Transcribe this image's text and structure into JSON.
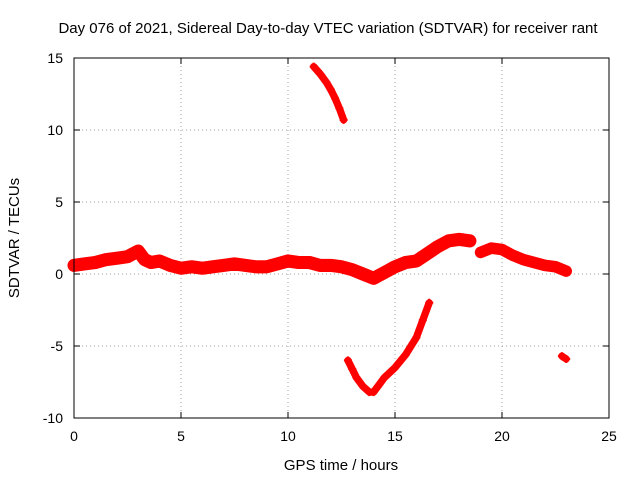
{
  "chart_data": {
    "type": "scatter",
    "title": "Day 076 of 2021, Sidereal Day-to-day VTEC variation (SDTVAR) for receiver rant",
    "xlabel": "GPS time / hours",
    "ylabel": "SDTVAR / TECUs",
    "xlim": [
      0,
      25
    ],
    "ylim": [
      -10,
      15
    ],
    "xticks": [
      0,
      5,
      10,
      15,
      20,
      25
    ],
    "yticks": [
      -10,
      -5,
      0,
      5,
      10,
      15
    ],
    "xtick_labels": [
      "0",
      "5",
      "10",
      "15",
      "20",
      "25"
    ],
    "ytick_labels": [
      "-10",
      "-5",
      "0",
      "5",
      "10",
      "15"
    ],
    "grid": true,
    "marker_color": "#ff0000",
    "series": [
      {
        "name": "main-band",
        "spread": 0.7,
        "x": [
          0.0,
          0.5,
          1.0,
          1.5,
          2.0,
          2.5,
          3.0,
          3.3,
          3.6,
          4.0,
          4.5,
          5.0,
          5.5,
          6.0,
          6.5,
          7.0,
          7.5,
          8.0,
          8.5,
          9.0,
          9.5,
          10.0,
          10.5,
          11.0,
          11.5,
          12.0,
          12.5,
          13.0,
          13.5,
          14.0,
          14.5,
          15.0,
          15.5,
          16.0,
          16.5,
          17.0,
          17.5,
          18.0,
          18.5
        ],
        "y": [
          0.6,
          0.7,
          0.8,
          1.0,
          1.1,
          1.2,
          1.6,
          1.0,
          0.8,
          0.9,
          0.6,
          0.4,
          0.5,
          0.4,
          0.5,
          0.6,
          0.7,
          0.6,
          0.5,
          0.5,
          0.7,
          0.9,
          0.8,
          0.8,
          0.6,
          0.6,
          0.5,
          0.3,
          0.0,
          -0.3,
          0.1,
          0.5,
          0.8,
          0.9,
          1.4,
          1.9,
          2.3,
          2.4,
          2.3
        ]
      },
      {
        "name": "evening-band",
        "spread": 0.6,
        "x": [
          19.0,
          19.5,
          20.0,
          20.5,
          21.0,
          21.5,
          22.0,
          22.5,
          23.0
        ],
        "y": [
          1.5,
          1.8,
          1.7,
          1.3,
          1.0,
          0.8,
          0.6,
          0.5,
          0.2
        ]
      },
      {
        "name": "upper-arc",
        "spread": 0.3,
        "x": [
          11.2,
          11.5,
          11.8,
          12.0,
          12.2,
          12.4,
          12.6
        ],
        "y": [
          14.4,
          13.9,
          13.3,
          12.8,
          12.2,
          11.5,
          10.7
        ]
      },
      {
        "name": "lower-arc",
        "spread": 0.3,
        "x": [
          12.8,
          13.0,
          13.2,
          13.5,
          13.8,
          14.0,
          14.2,
          14.5,
          15.0,
          15.5,
          16.0,
          16.3,
          16.6
        ],
        "y": [
          -6.0,
          -6.6,
          -7.2,
          -7.8,
          -8.2,
          -8.2,
          -7.8,
          -7.2,
          -6.5,
          -5.6,
          -4.4,
          -3.2,
          -2.0
        ]
      },
      {
        "name": "isolated-point",
        "spread": 0.3,
        "x": [
          22.8,
          23.0
        ],
        "y": [
          -5.7,
          -5.9
        ]
      }
    ]
  }
}
